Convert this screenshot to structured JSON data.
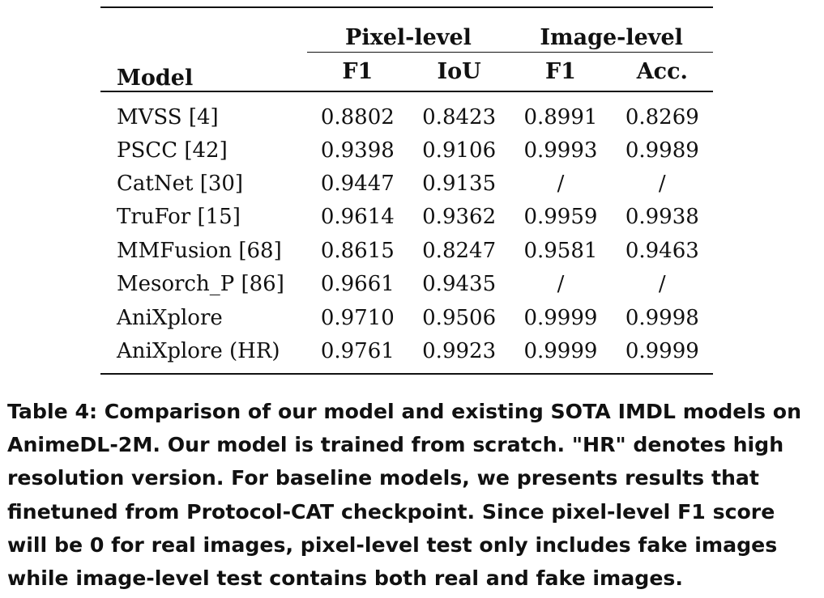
{
  "table": {
    "header": {
      "model": "Model",
      "groups": [
        "Pixel-level",
        "Image-level"
      ],
      "metrics": [
        "F1",
        "IoU",
        "F1",
        "Acc."
      ]
    },
    "rows": [
      {
        "model": "MVSS [4]",
        "values": [
          "0.8802",
          "0.8423",
          "0.8991",
          "0.8269"
        ]
      },
      {
        "model": "PSCC [42]",
        "values": [
          "0.9398",
          "0.9106",
          "0.9993",
          "0.9989"
        ]
      },
      {
        "model": "CatNet [30]",
        "values": [
          "0.9447",
          "0.9135",
          "/",
          "/"
        ]
      },
      {
        "model": "TruFor [15]",
        "values": [
          "0.9614",
          "0.9362",
          "0.9959",
          "0.9938"
        ]
      },
      {
        "model": "MMFusion [68]",
        "values": [
          "0.8615",
          "0.8247",
          "0.9581",
          "0.9463"
        ]
      },
      {
        "model": "Mesorch_P [86]",
        "values": [
          "0.9661",
          "0.9435",
          "/",
          "/"
        ]
      },
      {
        "model": "AniXplore",
        "values": [
          "0.9710",
          "0.9506",
          "0.9999",
          "0.9998"
        ]
      },
      {
        "model": "AniXplore (HR)",
        "values": [
          "0.9761",
          "0.9923",
          "0.9999",
          "0.9999"
        ]
      }
    ]
  },
  "caption": {
    "text": "Table 4: Comparison of our model and existing SOTA IMDL models on AnimeDL-2M. Our model is trained from scratch. \"HR\" denotes high resolution version. For baseline models, we presents results that finetuned from Protocol-CAT checkpoint. Since pixel-level F1 score will be 0 for real images, pixel-level test only includes fake images while image-level test contains both real and fake images."
  }
}
